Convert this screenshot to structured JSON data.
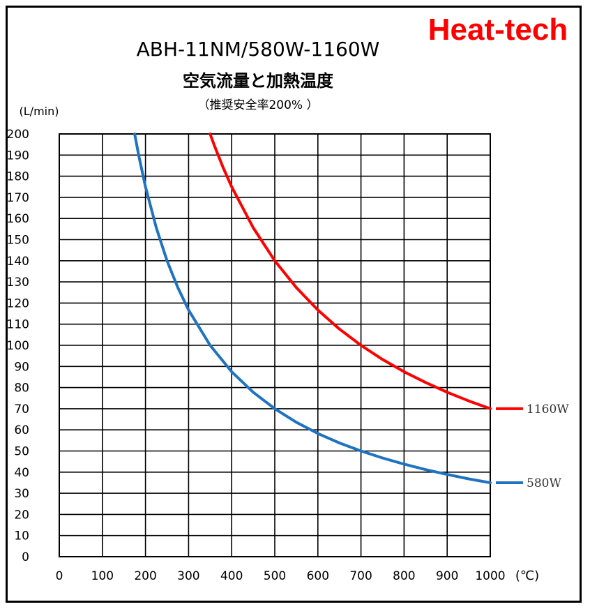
{
  "brand": {
    "text": "Heat-tech",
    "color": "#ff0000"
  },
  "chart_data": {
    "type": "line",
    "title": "ABH-11NM/580W-1160W",
    "subtitle": "空気流量と加熱温度",
    "note": "（推奨安全率200% ）",
    "xlabel": "(℃)",
    "ylabel": "(L/min)",
    "xlim": [
      0,
      1000
    ],
    "ylim": [
      0,
      200
    ],
    "x_ticks": [
      "0",
      "100",
      "200",
      "300",
      "400",
      "500",
      "600",
      "700",
      "800",
      "900",
      "1000"
    ],
    "y_ticks": [
      "0",
      "10",
      "20",
      "30",
      "40",
      "50",
      "60",
      "70",
      "80",
      "90",
      "100",
      "110",
      "120",
      "130",
      "140",
      "150",
      "160",
      "170",
      "180",
      "190",
      "200"
    ],
    "grid": true,
    "series": [
      {
        "name": "1160W",
        "color": "#ff0000",
        "x": [
          350,
          360,
          380,
          400,
          450,
          500,
          550,
          600,
          650,
          700,
          750,
          800,
          850,
          900,
          950,
          1000
        ],
        "y": [
          200,
          194.4,
          184.2,
          175,
          155.6,
          140,
          127.3,
          116.7,
          107.7,
          100,
          93.3,
          87.5,
          82.4,
          77.8,
          73.7,
          70
        ]
      },
      {
        "name": "580W",
        "color": "#1f73c0",
        "x": [
          175,
          185,
          200,
          225,
          250,
          275,
          300,
          350,
          400,
          450,
          500,
          550,
          600,
          650,
          700,
          750,
          800,
          850,
          900,
          950,
          1000
        ],
        "y": [
          200,
          189.2,
          175,
          155.6,
          140,
          127.3,
          116.7,
          100,
          87.5,
          77.8,
          70,
          63.6,
          58.3,
          53.8,
          50,
          46.7,
          43.8,
          41.2,
          38.9,
          36.8,
          35
        ]
      }
    ]
  }
}
